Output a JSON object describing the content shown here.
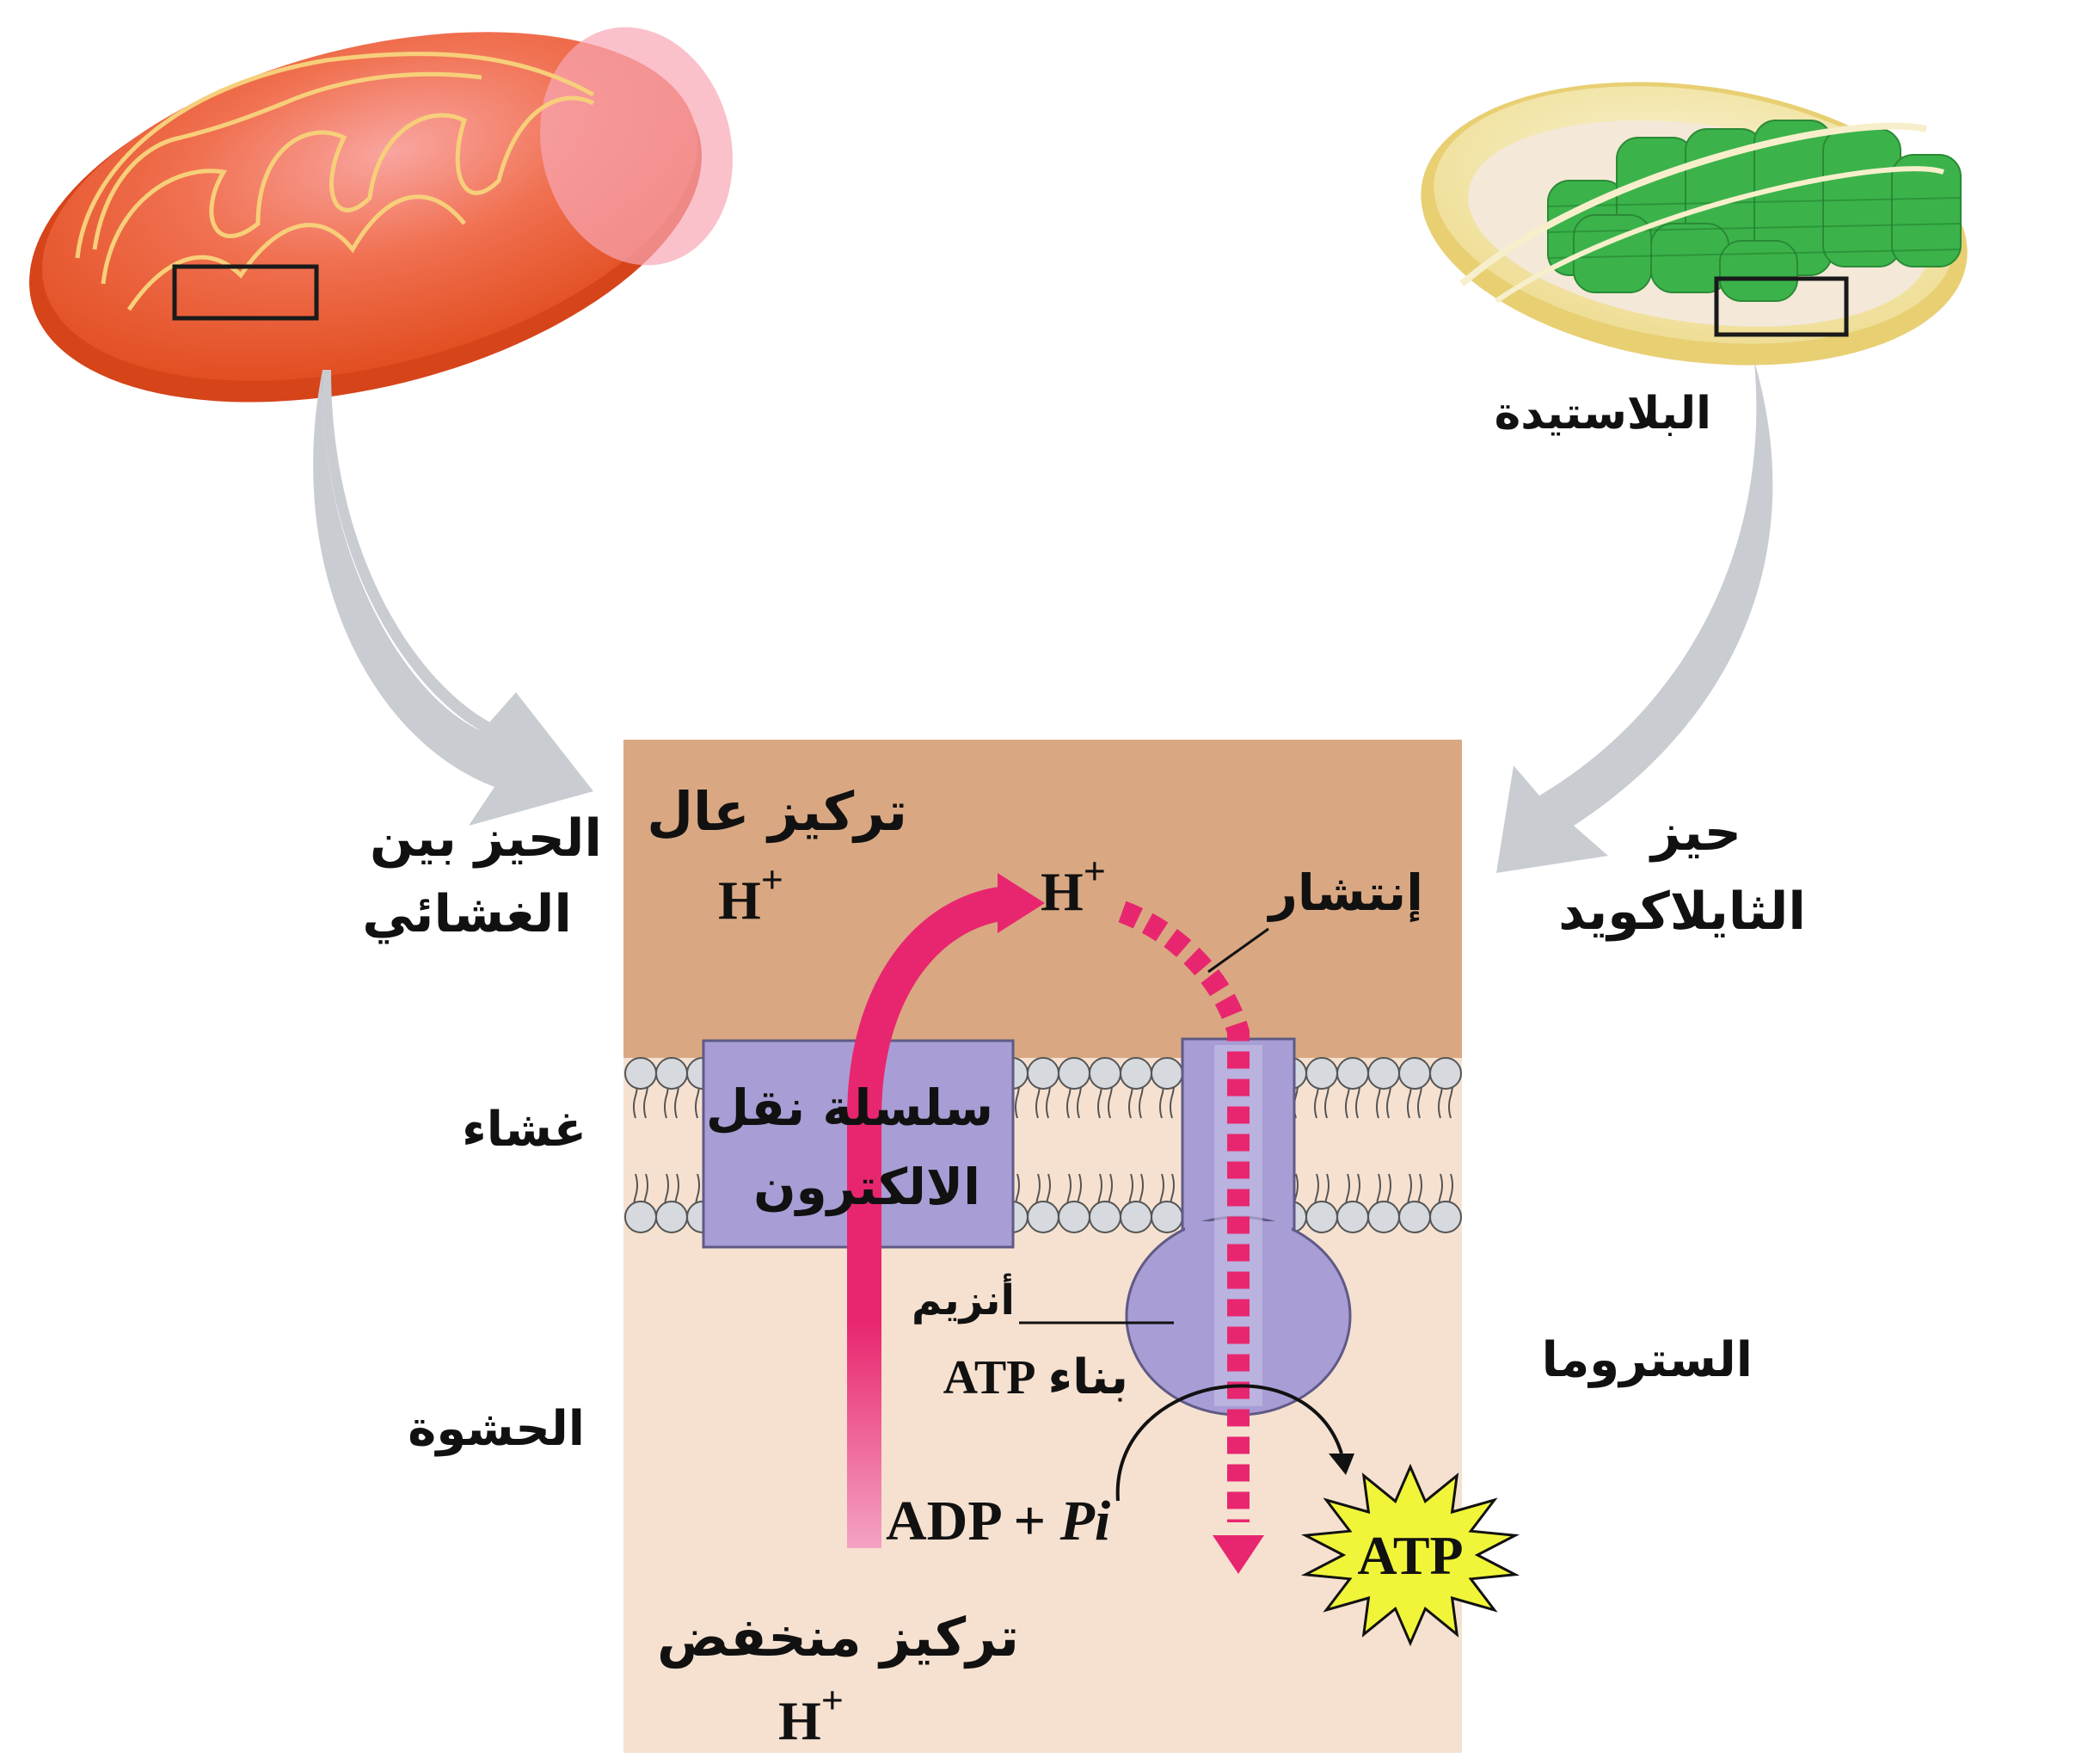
{
  "labels": {
    "plastid": "البلاستيدة",
    "intermembrane_line1": "الحيز بين",
    "intermembrane_line2": "الغشائي",
    "thylakoid_line1": "حيز",
    "thylakoid_line2": "الثايلاكويد",
    "membrane": "غشاء",
    "matrix": "الحشوة",
    "stroma": "الستروما",
    "high_conc": "تركيز عال",
    "h_plus": "H",
    "plus_sign": "+",
    "diffusion": "إنتشار",
    "etc_line1": "سلسلة نقل",
    "etc_line2": "الالكترون",
    "enzyme_line1": "أنزيم",
    "enzyme_line2": "بناء",
    "atp": "ATP",
    "adp_pi_left": "ADP + ",
    "adp_pi_right": "Pi",
    "low_conc": "تركيز منخفض"
  },
  "colors": {
    "upper_compartment": "#d9a882",
    "lower_compartment": "#f6e1d0",
    "protein": "#a89dd4",
    "proton_arrow": "#e8266f",
    "mitochondrion": "#ec5a30",
    "chloroplast_envelope": "#f2e4a0",
    "grana": "#3bb34a",
    "atp_burst": "#f1f53a",
    "gray_arrow": "#c9ccd1"
  }
}
